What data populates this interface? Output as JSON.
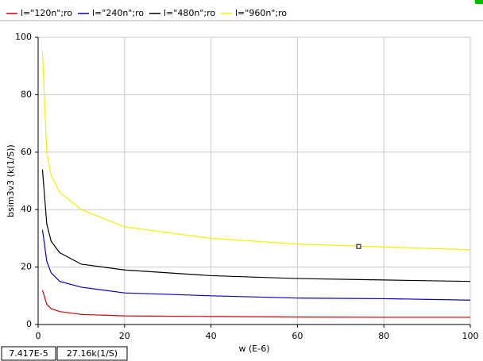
{
  "chart_data": {
    "type": "line",
    "x_label": "w (E-6)",
    "y_label": "bsim3v3  (k(1/S))",
    "x": [
      1,
      2,
      3,
      5,
      10,
      20,
      40,
      60,
      80,
      100
    ],
    "series": [
      {
        "name": "l=\"120n\";ro",
        "color": "#d00000",
        "values": [
          12,
          7,
          5.5,
          4.5,
          3.5,
          3,
          2.8,
          2.6,
          2.5,
          2.5
        ]
      },
      {
        "name": "l=\"240n\";ro",
        "color": "#0000c8",
        "values": [
          33,
          22,
          18,
          15,
          13,
          11,
          10,
          9.2,
          9,
          8.5
        ]
      },
      {
        "name": "l=\"480n\";ro",
        "color": "#000000",
        "values": [
          54,
          35,
          29,
          25,
          21,
          19,
          17,
          16,
          15.5,
          15
        ]
      },
      {
        "name": "l=\"960n\";ro",
        "color": "#f0f000",
        "values": [
          95,
          60,
          52,
          46,
          40,
          34,
          30,
          28,
          27,
          26
        ]
      }
    ],
    "xlim": [
      0,
      100
    ],
    "xticks": [
      0,
      20,
      40,
      60,
      80,
      100
    ],
    "ylim": [
      0,
      100
    ],
    "yticks": [
      0,
      20,
      40,
      60,
      80,
      100
    ],
    "grid": true,
    "marker": {
      "x": 74.17,
      "y": 27.16
    },
    "status": [
      "7.417E-5",
      "27.16k(1/S)"
    ]
  }
}
